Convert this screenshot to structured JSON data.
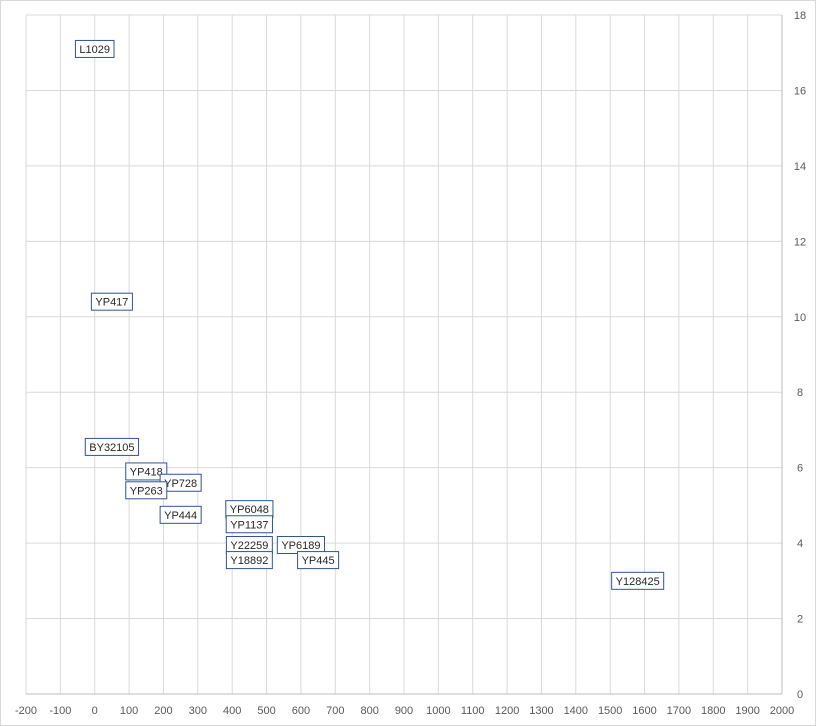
{
  "chart_data": {
    "type": "scatter",
    "title": "",
    "xlabel": "",
    "ylabel": "",
    "xlim": [
      -200,
      2000
    ],
    "ylim": [
      0,
      18
    ],
    "x_ticks": [
      "-200",
      "-100",
      "0",
      "100",
      "200",
      "300",
      "400",
      "500",
      "600",
      "700",
      "800",
      "900",
      "1000",
      "1100",
      "1200",
      "1300",
      "1400",
      "1500",
      "1600",
      "1700",
      "1800",
      "1900",
      "2000"
    ],
    "y_ticks": [
      "0",
      "2",
      "4",
      "6",
      "8",
      "10",
      "12",
      "14",
      "16",
      "18"
    ],
    "grid": true,
    "legend": "none",
    "y_axis_position": "right",
    "points": [
      {
        "label": "L1029",
        "x": 0,
        "y": 17.1
      },
      {
        "label": "YP417",
        "x": 50,
        "y": 10.4
      },
      {
        "label": "BY32105",
        "x": 50,
        "y": 6.55
      },
      {
        "label": "YP418",
        "x": 150,
        "y": 5.9
      },
      {
        "label": "YP728",
        "x": 250,
        "y": 5.6
      },
      {
        "label": "YP263",
        "x": 150,
        "y": 5.4
      },
      {
        "label": "YP444",
        "x": 250,
        "y": 4.75
      },
      {
        "label": "YP6048",
        "x": 450,
        "y": 4.9
      },
      {
        "label": "YP1137",
        "x": 450,
        "y": 4.5
      },
      {
        "label": "Y22259",
        "x": 450,
        "y": 3.95
      },
      {
        "label": "YP6189",
        "x": 600,
        "y": 3.95
      },
      {
        "label": "Y18892",
        "x": 450,
        "y": 3.55
      },
      {
        "label": "YP445",
        "x": 650,
        "y": 3.55
      },
      {
        "label": "Y128425",
        "x": 1580,
        "y": 3.0
      }
    ]
  }
}
